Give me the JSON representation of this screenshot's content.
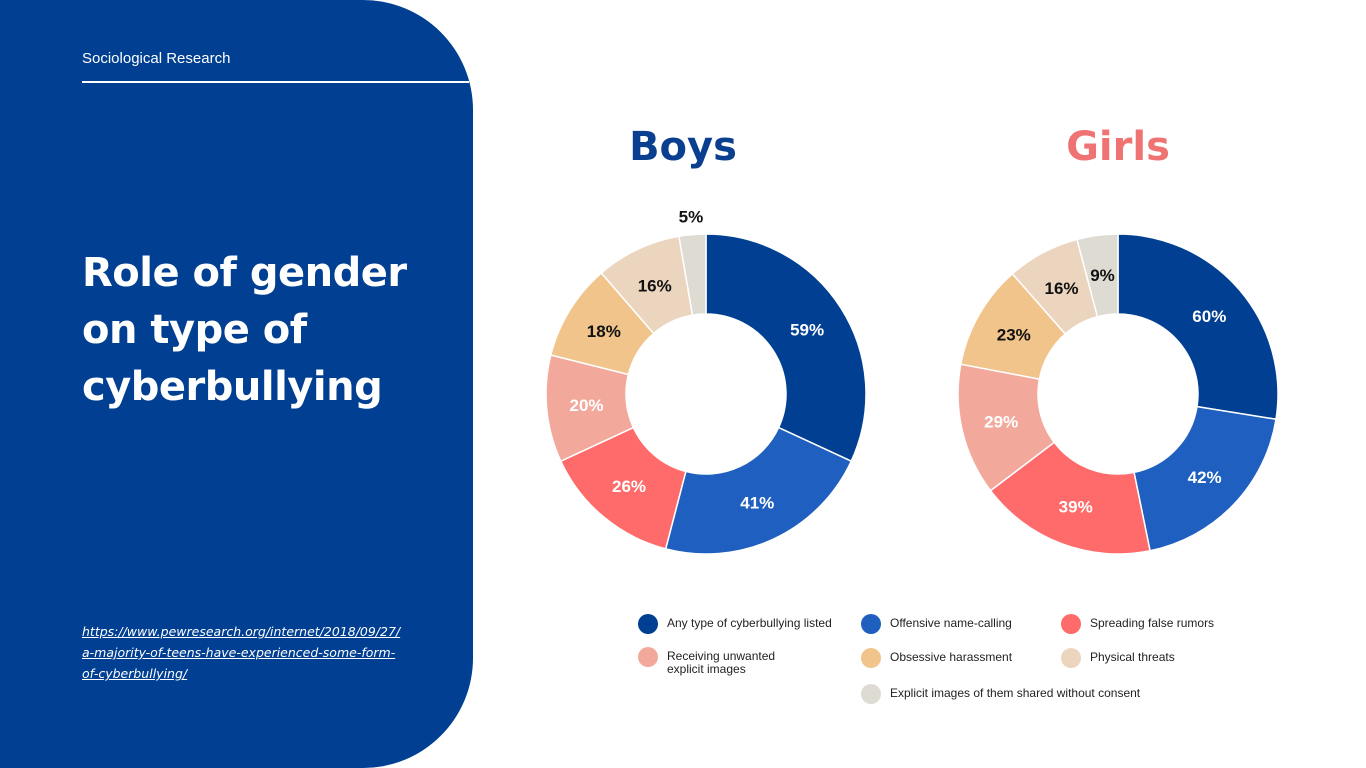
{
  "header": {
    "label": "Sociological Research",
    "title": "Role of gender on type of cyberbullying",
    "source_url": "https://www.pewresearch.org/internet/2018/09/27/a-majority-of-teens-have-experienced-some-form-of-cyberbullying/"
  },
  "colors": {
    "panel": "#003f91",
    "boys_title": "#0a3f8f",
    "girls_title": "#f07373",
    "label_dark": "#111111",
    "label_light": "#ffffff"
  },
  "chart_data": [
    {
      "type": "pie",
      "title": "Boys",
      "donut": true,
      "categories": [
        "Any type of cyberbullying listed",
        "Offensive name-calling",
        "Spreading false rumors",
        "Receiving unwanted explicit images",
        "Obsessive harassment",
        "Physical threats",
        "Explicit images of them shared without consent"
      ],
      "values": [
        59,
        41,
        26,
        20,
        18,
        16,
        5
      ],
      "labels": [
        "59%",
        "41%",
        "26%",
        "20%",
        "18%",
        "16%",
        "5%"
      ],
      "colors": [
        "#003f91",
        "#1e5fbf",
        "#ff6b6b",
        "#f2a99c",
        "#f0c48b",
        "#ebd5bf",
        "#dedbd3"
      ]
    },
    {
      "type": "pie",
      "title": "Girls",
      "donut": true,
      "categories": [
        "Any type of cyberbullying listed",
        "Offensive name-calling",
        "Spreading false rumors",
        "Receiving unwanted explicit images",
        "Obsessive harassment",
        "Physical threats",
        "Explicit images of them shared without consent"
      ],
      "values": [
        60,
        42,
        39,
        29,
        23,
        16,
        9
      ],
      "labels": [
        "60%",
        "42%",
        "39%",
        "29%",
        "23%",
        "16%",
        "9%"
      ],
      "colors": [
        "#003f91",
        "#1e5fbf",
        "#ff6b6b",
        "#f2a99c",
        "#f0c48b",
        "#ebd5bf",
        "#dedbd3"
      ]
    }
  ],
  "legend": [
    {
      "label": "Any type of cyberbullying listed",
      "color": "#003f91"
    },
    {
      "label": "Offensive name-calling",
      "color": "#1e5fbf"
    },
    {
      "label": "Spreading false rumors",
      "color": "#ff6b6b"
    },
    {
      "label": "Receiving unwanted\nexplicit images",
      "color": "#f2a99c"
    },
    {
      "label": "Obsessive harassment",
      "color": "#f0c48b"
    },
    {
      "label": "Physical threats",
      "color": "#ebd5bf"
    },
    {
      "label": "Explicit images of them shared without consent",
      "color": "#dedbd3"
    }
  ]
}
